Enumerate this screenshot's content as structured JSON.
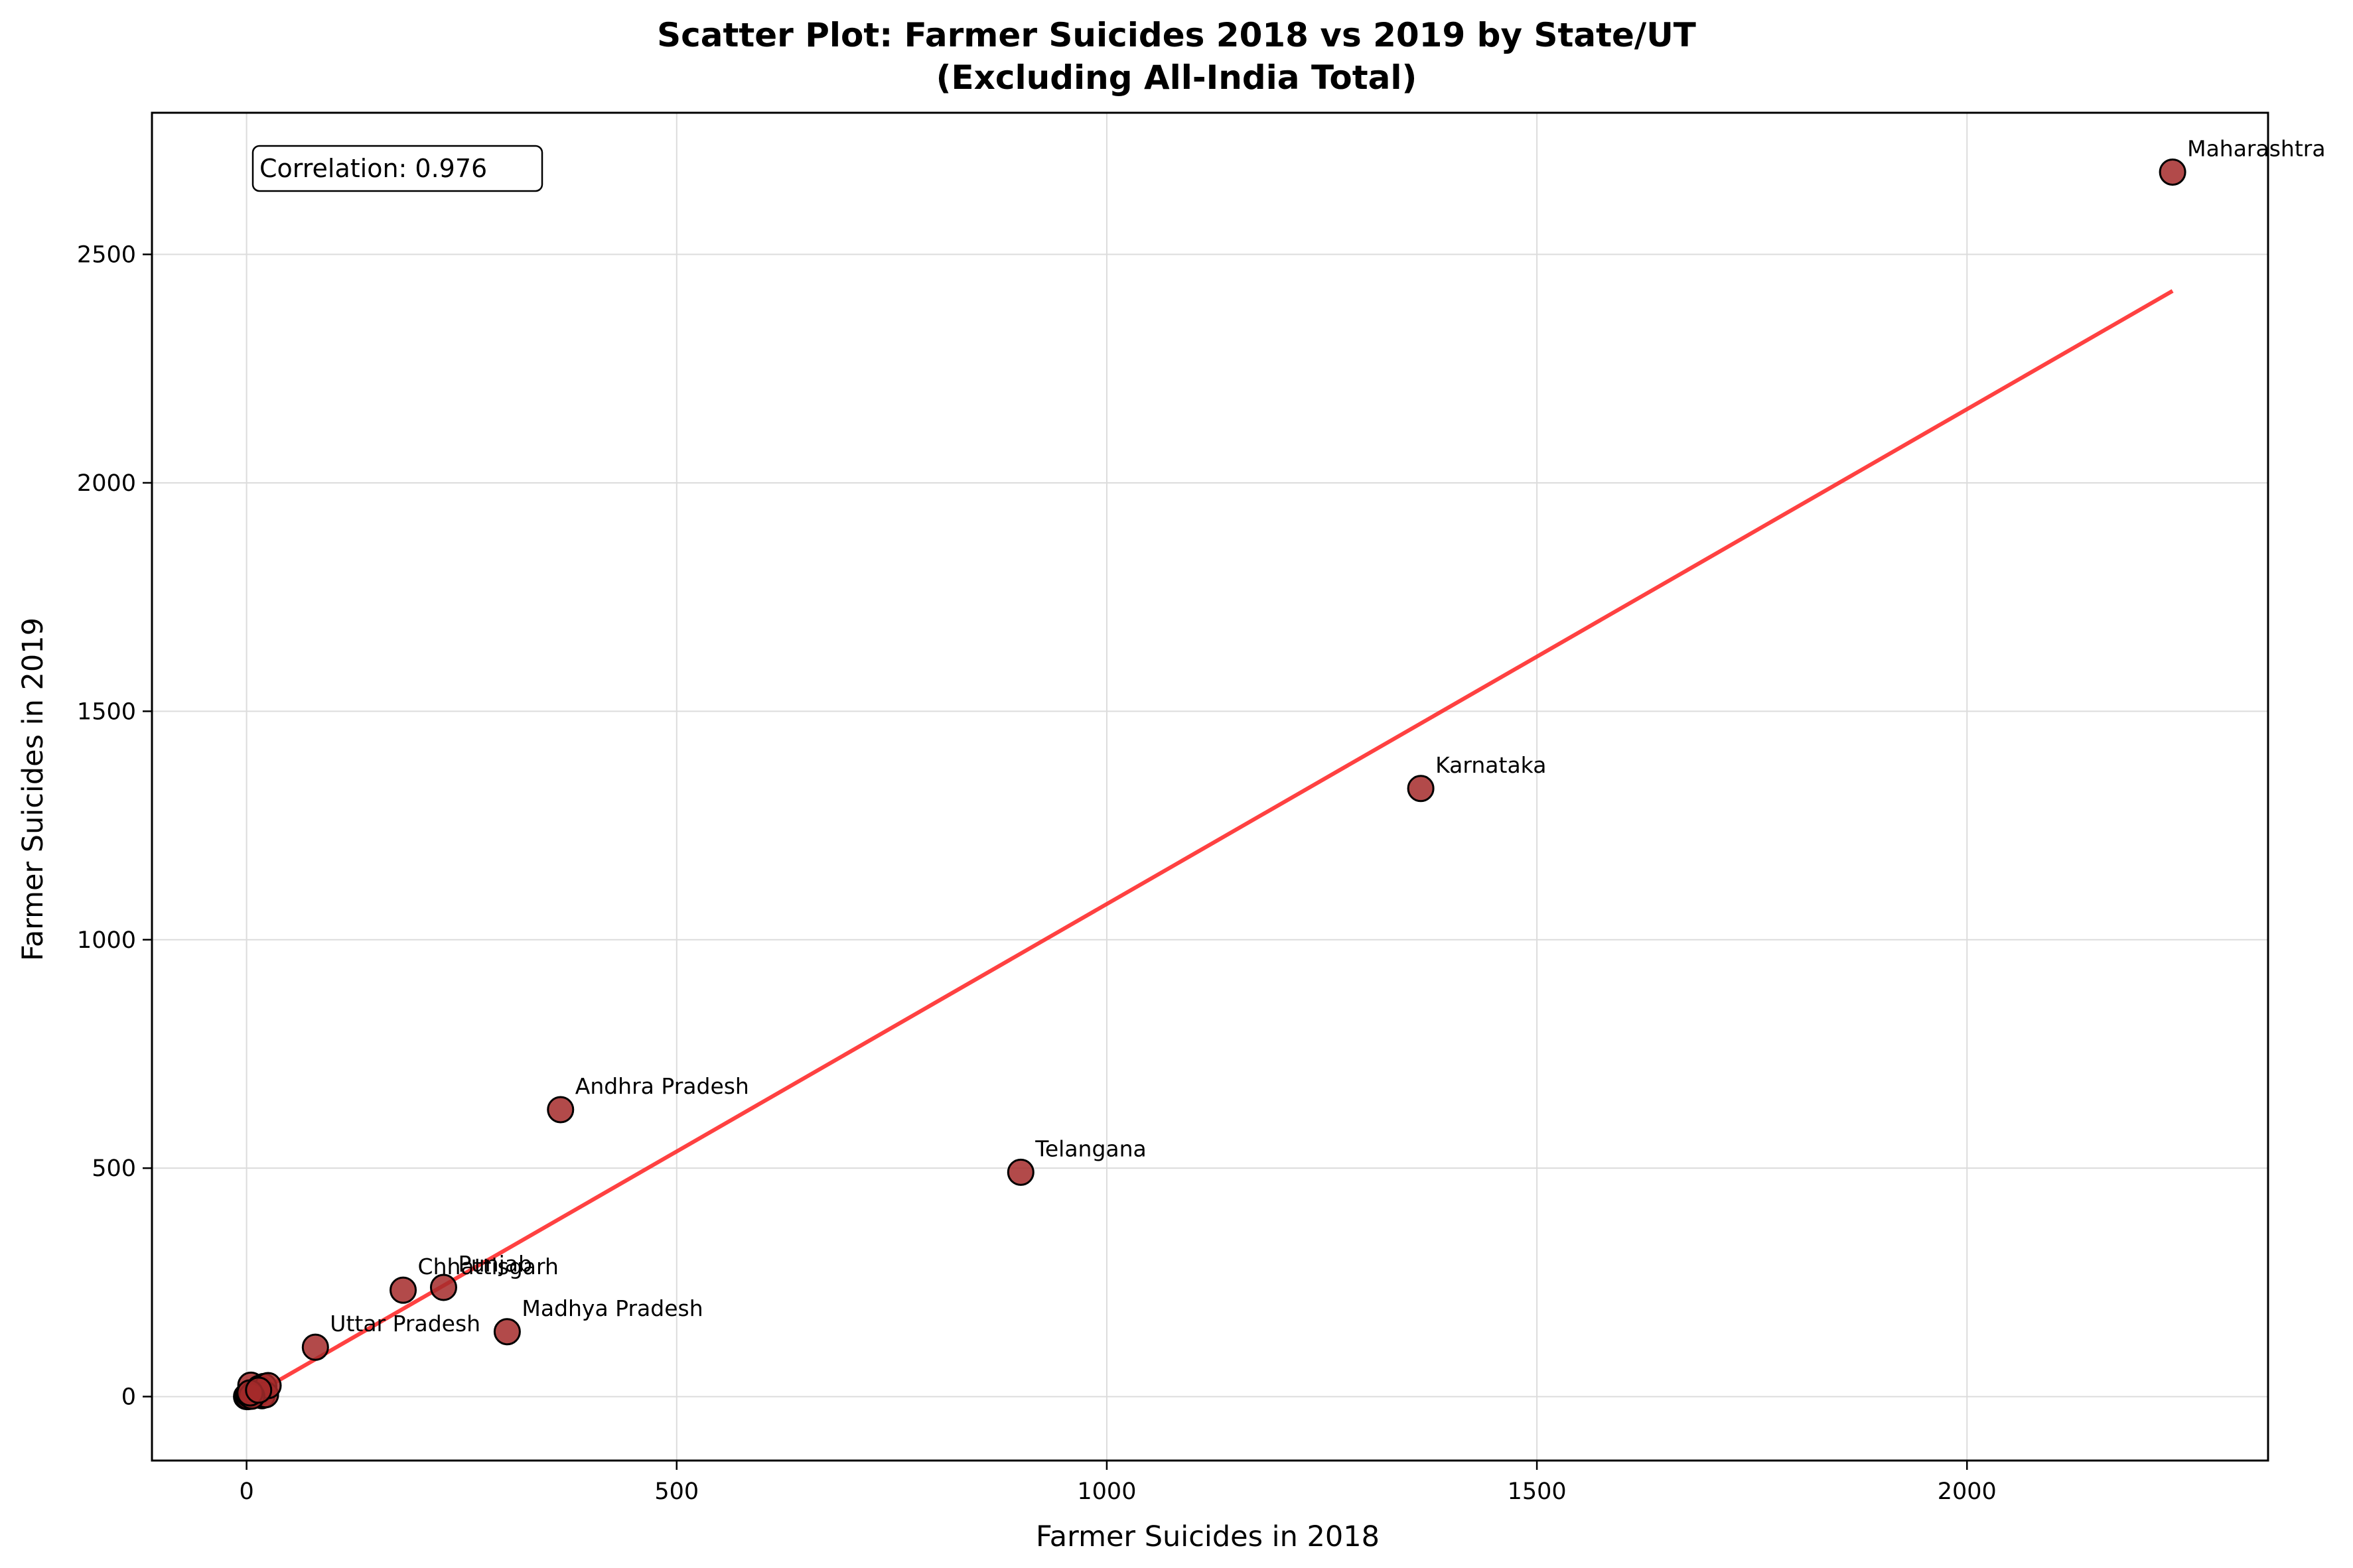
{
  "chart_data": {
    "type": "scatter",
    "title": "Scatter Plot: Farmer Suicides 2018 vs 2019 by State/UT",
    "subtitle": "(Excluding All-India Total)",
    "xlabel": "Farmer Suicides in 2018",
    "ylabel": "Farmer Suicides in 2019",
    "xlim": [
      -110,
      2350
    ],
    "ylim": [
      -140,
      2810
    ],
    "xticks": [
      0,
      500,
      1000,
      1500,
      2000
    ],
    "yticks": [
      0,
      500,
      1000,
      1500,
      2000,
      2500
    ],
    "grid": true,
    "annotation": "Correlation: 0.976",
    "point_color": "#a52a2a",
    "trend_color": "#ff2020",
    "trend_line": {
      "x": [
        0,
        2239
      ],
      "y": [
        -5,
        2420
      ]
    },
    "labeled_points": [
      {
        "label": "Maharashtra",
        "x": 2239,
        "y": 2680
      },
      {
        "label": "Karnataka",
        "x": 1365,
        "y": 1331
      },
      {
        "label": "Andhra Pradesh",
        "x": 365,
        "y": 628
      },
      {
        "label": "Telangana",
        "x": 900,
        "y": 491
      },
      {
        "label": "Punjab",
        "x": 229,
        "y": 239
      },
      {
        "label": "Chhattisgarh",
        "x": 182,
        "y": 233
      },
      {
        "label": "Madhya Pradesh",
        "x": 303,
        "y": 142
      },
      {
        "label": "Uttar Pradesh",
        "x": 80,
        "y": 108
      }
    ],
    "other_points": [
      {
        "x": 0,
        "y": 0
      },
      {
        "x": 1,
        "y": 2
      },
      {
        "x": 2,
        "y": 0
      },
      {
        "x": 3,
        "y": 5
      },
      {
        "x": 5,
        "y": 25
      },
      {
        "x": 8,
        "y": 3
      },
      {
        "x": 10,
        "y": 10
      },
      {
        "x": 12,
        "y": 6
      },
      {
        "x": 15,
        "y": 18
      },
      {
        "x": 18,
        "y": 2
      },
      {
        "x": 20,
        "y": 22
      },
      {
        "x": 22,
        "y": 4
      },
      {
        "x": 25,
        "y": 24
      },
      {
        "x": 6,
        "y": 1
      },
      {
        "x": 4,
        "y": 8
      },
      {
        "x": 14,
        "y": 14
      }
    ]
  }
}
